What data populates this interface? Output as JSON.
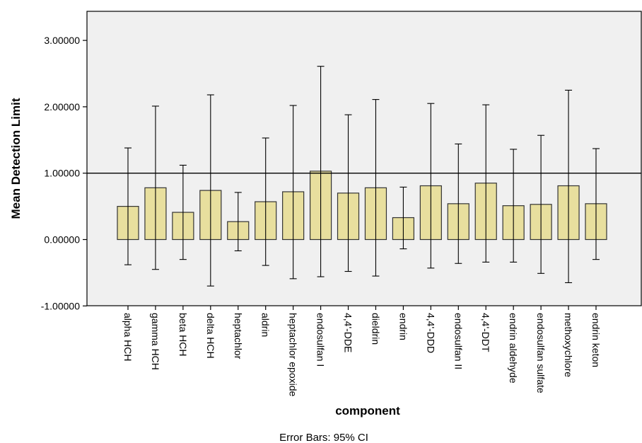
{
  "chart_data": {
    "type": "bar",
    "xlabel": "component",
    "ylabel": "Mean Detection Limit",
    "footnote": "Error Bars: 95% CI",
    "ylim": [
      -1,
      3.3
    ],
    "yticks": [
      -1,
      0,
      1,
      2,
      3
    ],
    "ytick_labels": [
      "-1.00000",
      "0.00000",
      "1.00000",
      "2.00000",
      "3.00000"
    ],
    "reference_line": 1,
    "grid": false,
    "legend": "none",
    "colors": {
      "bar_fill": "#e8df9e",
      "bar_edge": "#333333",
      "plot_bg": "#f0f0f0",
      "frame": "#000000"
    },
    "categories": [
      "alpha HCH",
      "gamma HCH",
      "beta HCH",
      "delta HCH",
      "heptachlor",
      "aldrin",
      "heptachlor epoxide",
      "endosulfan I",
      "4,4'-DDE",
      "dieldrin",
      "endrin",
      "4,4'-DDD",
      "endosulfan II",
      "4,4'-DDT",
      "endrin aldehyde",
      "endosulfan sulfate",
      "methoxychlore",
      "endrin keton"
    ],
    "values": [
      0.5,
      0.78,
      0.41,
      0.74,
      0.27,
      0.57,
      0.72,
      1.03,
      0.7,
      0.78,
      0.33,
      0.81,
      0.54,
      0.85,
      0.51,
      0.53,
      0.81,
      0.54
    ],
    "ci_upper": [
      1.38,
      2.01,
      1.12,
      2.18,
      0.71,
      1.53,
      2.02,
      2.61,
      1.88,
      2.11,
      0.79,
      2.05,
      1.44,
      2.03,
      1.36,
      1.57,
      2.25,
      1.37
    ],
    "ci_lower": [
      -0.38,
      -0.45,
      -0.3,
      -0.7,
      -0.17,
      -0.39,
      -0.59,
      -0.56,
      -0.48,
      -0.55,
      -0.14,
      -0.43,
      -0.36,
      -0.34,
      -0.34,
      -0.51,
      -0.65,
      -0.3
    ]
  }
}
